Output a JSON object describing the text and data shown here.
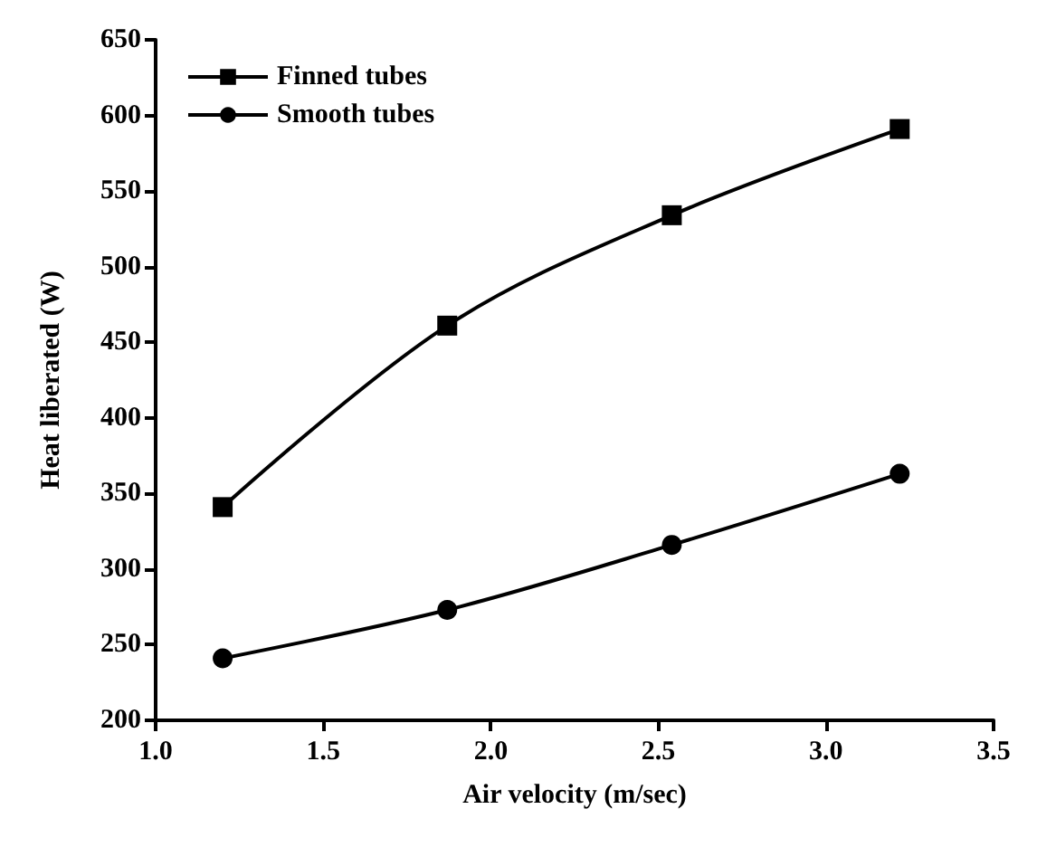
{
  "chart_data": {
    "type": "line",
    "xlabel": "Air velocity (m/sec)",
    "ylabel": "Heat liberated (W)",
    "x": [
      1.2,
      1.87,
      2.54,
      3.22
    ],
    "series": [
      {
        "name": "Finned tubes",
        "color": "#000000",
        "marker": "square",
        "values": [
          341,
          461,
          534,
          591
        ]
      },
      {
        "name": "Smooth tubes",
        "color": "#000000",
        "marker": "circle",
        "values": [
          241,
          273,
          316,
          363
        ]
      }
    ],
    "xlim": [
      1.0,
      3.5
    ],
    "xticks": [
      {
        "value": 1,
        "label": "1.0"
      },
      1.5,
      {
        "value": 2,
        "label": "2.0"
      },
      2.5,
      {
        "value": 3,
        "label": "3.0"
      },
      3.5
    ],
    "ylim": [
      200,
      650
    ],
    "yticks": [
      200,
      250,
      300,
      350,
      400,
      450,
      500,
      550,
      600,
      650
    ],
    "grid": false,
    "legend": "top left",
    "line_style": "solid"
  }
}
